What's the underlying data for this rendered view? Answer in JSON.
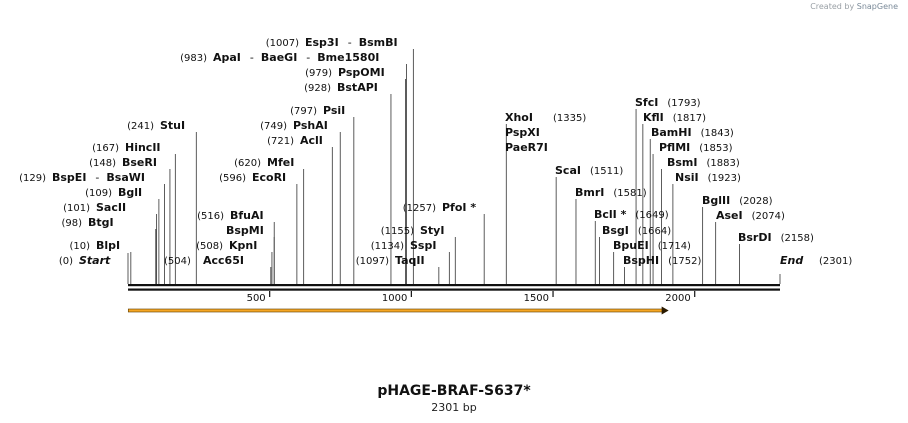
{
  "credit": {
    "prefix": "Created by",
    "brand": "SnapGene"
  },
  "sequence": {
    "name": "pHAGE-BRAF-S637*",
    "length_label": "2301 bp",
    "length": 2301
  },
  "ticks": [
    500,
    1000,
    1500,
    2000
  ],
  "feature": {
    "start": 1,
    "end": 1908,
    "color": "#f5a623"
  },
  "sites": [
    {
      "name": "Start",
      "pos": 0,
      "pos_label": "(0)",
      "italic": true
    },
    {
      "name": "BlpI",
      "pos": 10,
      "pos_label": "(10)"
    },
    {
      "name": "BtgI",
      "pos": 98,
      "pos_label": "(98)"
    },
    {
      "name": "SacII",
      "pos": 101,
      "pos_label": "(101)"
    },
    {
      "name": "BglI",
      "pos": 109,
      "pos_label": "(109)"
    },
    {
      "name": "BspEI",
      "name2": "BsaWI",
      "pos": 129,
      "pos_label": "(129)"
    },
    {
      "name": "BseRI",
      "pos": 148,
      "pos_label": "(148)"
    },
    {
      "name": "HincII",
      "pos": 167,
      "pos_label": "(167)"
    },
    {
      "name": "StuI",
      "pos": 241,
      "pos_label": "(241)"
    },
    {
      "name": "",
      "pos": 504,
      "pos_label": "(504)"
    },
    {
      "name": "Acc65I",
      "pos": 504
    },
    {
      "name": "KpnI",
      "pos": 508,
      "pos_label": "(508)"
    },
    {
      "name": "BspMI",
      "pos": 516
    },
    {
      "name": "BfuAI",
      "pos": 516,
      "pos_label": "(516)"
    },
    {
      "name": "EcoRI",
      "pos": 596,
      "pos_label": "(596)"
    },
    {
      "name": "MfeI",
      "pos": 620,
      "pos_label": "(620)"
    },
    {
      "name": "AclI",
      "pos": 721,
      "pos_label": "(721)"
    },
    {
      "name": "PshAI",
      "pos": 749,
      "pos_label": "(749)"
    },
    {
      "name": "PsiI",
      "pos": 797,
      "pos_label": "(797)"
    },
    {
      "name": "BstAPI",
      "pos": 928,
      "pos_label": "(928)"
    },
    {
      "name": "PspOMI",
      "pos": 979,
      "pos_label": "(979)"
    },
    {
      "name": "ApaI",
      "name2": "BaeGI",
      "name3": "Bme1580I",
      "pos": 983,
      "pos_label": "(983)"
    },
    {
      "name": "Esp3I",
      "name2": "BsmBI",
      "pos": 1007,
      "pos_label": "(1007)"
    },
    {
      "name": "TaqII",
      "pos": 1097,
      "pos_label": "(1097)"
    },
    {
      "name": "SspI",
      "pos": 1134,
      "pos_label": "(1134)"
    },
    {
      "name": "StyI",
      "pos": 1155,
      "pos_label": "(1155)"
    },
    {
      "name": "PfoI *",
      "pos": 1257,
      "pos_label": "(1257)"
    },
    {
      "name": "XhoI",
      "name2": "PspXI",
      "name3": "PaeR7I",
      "pos": 1335,
      "pos_label": "(1335)"
    },
    {
      "name": "ScaI",
      "pos": 1511,
      "pos_label": "(1511)"
    },
    {
      "name": "BmrI",
      "pos": 1581,
      "pos_label": "(1581)"
    },
    {
      "name": "BclI *",
      "pos": 1649,
      "pos_label": "(1649)"
    },
    {
      "name": "BsgI",
      "pos": 1664,
      "pos_label": "(1664)"
    },
    {
      "name": "BpuEI",
      "pos": 1714,
      "pos_label": "(1714)"
    },
    {
      "name": "BspHI",
      "pos": 1752,
      "pos_label": "(1752)"
    },
    {
      "name": "SfcI",
      "pos": 1793,
      "pos_label": "(1793)"
    },
    {
      "name": "KflI",
      "pos": 1817,
      "pos_label": "(1817)"
    },
    {
      "name": "BamHI",
      "pos": 1843,
      "pos_label": "(1843)"
    },
    {
      "name": "PflMI",
      "pos": 1853,
      "pos_label": "(1853)"
    },
    {
      "name": "BsmI",
      "pos": 1883,
      "pos_label": "(1883)"
    },
    {
      "name": "NsiI",
      "pos": 1923,
      "pos_label": "(1923)"
    },
    {
      "name": "BglII",
      "pos": 2028,
      "pos_label": "(2028)"
    },
    {
      "name": "AseI",
      "pos": 2074,
      "pos_label": "(2074)"
    },
    {
      "name": "BsrDI",
      "pos": 2158,
      "pos_label": "(2158)"
    },
    {
      "name": "End",
      "pos": 2301,
      "pos_label": "(2301)",
      "italic": true
    }
  ]
}
